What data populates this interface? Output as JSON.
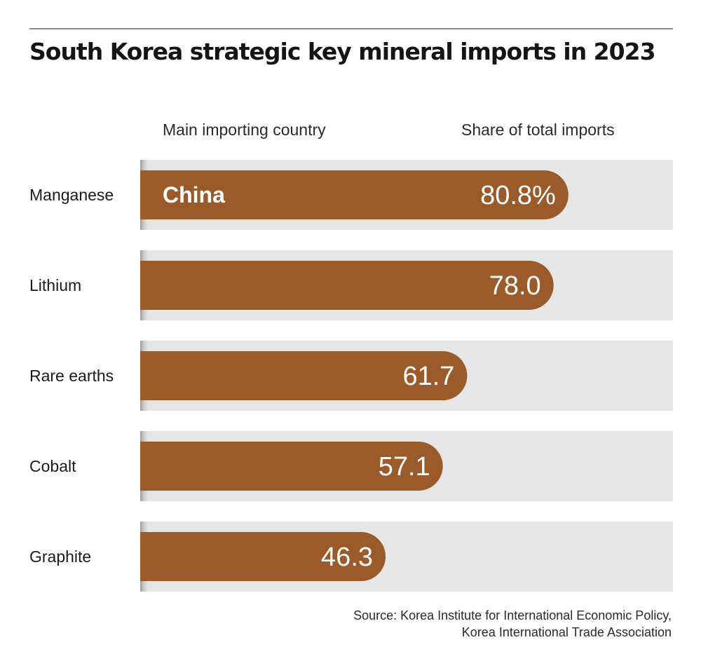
{
  "title": "South Korea strategic key mineral imports in 2023",
  "column_headers": {
    "country": "Main importing country",
    "share": "Share of total imports"
  },
  "source": {
    "line1": "Source: Korea Institute for International Economic Policy,",
    "line2": "Korea International Trade Association"
  },
  "colors": {
    "bar": "#9a5a2a",
    "track": "#e6e6e6",
    "bar_text": "#ffffff",
    "label_text": "#1a1a1a"
  },
  "chart_data": {
    "type": "bar",
    "orientation": "horizontal",
    "categories": [
      "Manganese",
      "Lithium",
      "Rare earths",
      "Cobalt",
      "Graphite"
    ],
    "values": [
      80.8,
      78.0,
      61.7,
      57.1,
      46.3
    ],
    "value_labels": [
      "80.8%",
      "78.0",
      "61.7",
      "57.1",
      "46.3"
    ],
    "country_labels": [
      "China",
      "",
      "",
      "",
      ""
    ],
    "xlim": [
      0,
      100
    ],
    "unit": "%",
    "grid": false,
    "legend": "none"
  }
}
